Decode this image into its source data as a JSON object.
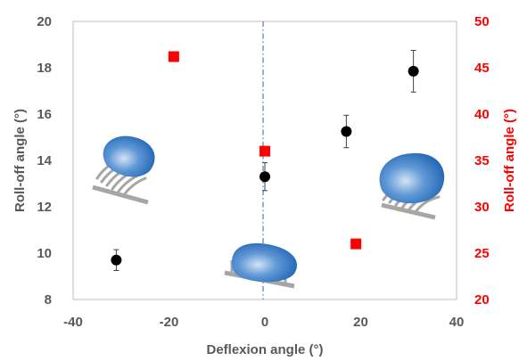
{
  "chart_data": {
    "type": "scatter",
    "title": "",
    "xlabel": "Deflexion angle (°)",
    "ylabel": "Roll-off angle (°)",
    "y2label": "Roll-off angle (°)",
    "xlim": [
      -40,
      40
    ],
    "ylim": [
      8,
      20
    ],
    "y2lim": [
      20,
      50
    ],
    "xticks": [
      -40,
      -20,
      0,
      20,
      40
    ],
    "yticks": [
      8,
      10,
      12,
      14,
      16,
      18,
      20
    ],
    "y2ticks": [
      20,
      25,
      30,
      35,
      40,
      45,
      50
    ],
    "grid": false,
    "reference_line_x": 0,
    "series": [
      {
        "axis": "left",
        "marker": "circle",
        "color": "#000000",
        "points": [
          {
            "x": -31,
            "y": 9.7,
            "err": 0.45
          },
          {
            "x": 0,
            "y": 13.3,
            "err": 0.6
          },
          {
            "x": 17,
            "y": 15.25,
            "err": 0.7
          },
          {
            "x": 31,
            "y": 17.85,
            "err": 0.9
          }
        ]
      },
      {
        "axis": "right",
        "marker": "square",
        "color": "#ff0000",
        "points": [
          {
            "x": -19,
            "y": 46.2
          },
          {
            "x": 0,
            "y": 36.0
          },
          {
            "x": 19,
            "y": 26.0
          }
        ]
      }
    ],
    "colors": {
      "left_axis": "#595959",
      "right_axis": "#ff0000",
      "reference_line": "#2e5fa8",
      "droplet": "#2f74c4",
      "pillar": "#a6a6a6"
    },
    "illustrations": [
      {
        "name": "droplet-left-tilted-icon",
        "deflexion": -30
      },
      {
        "name": "droplet-center-upright-icon",
        "deflexion": 0
      },
      {
        "name": "droplet-right-tilted-icon",
        "deflexion": 30
      }
    ]
  }
}
